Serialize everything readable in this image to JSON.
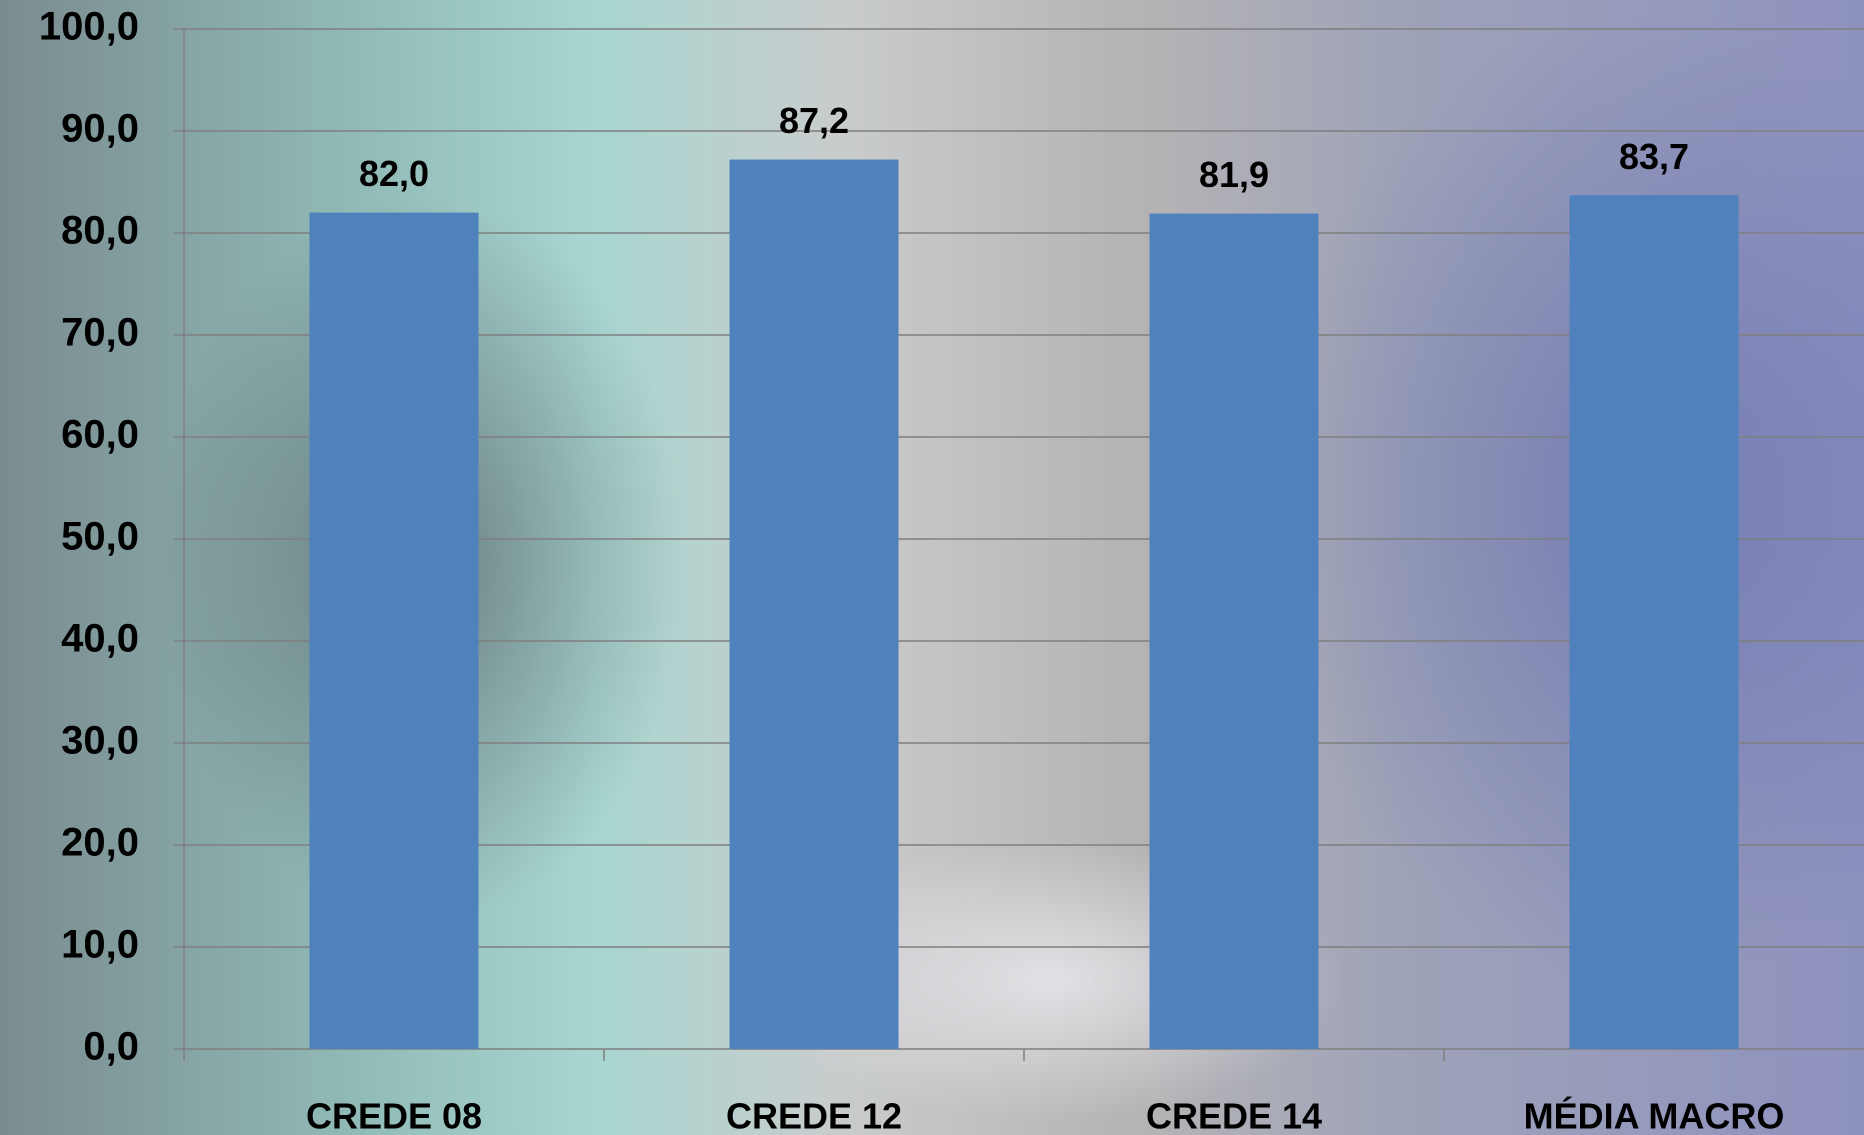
{
  "chart_data": {
    "type": "bar",
    "categories": [
      "CREDE 08",
      "CREDE 12",
      "CREDE 14",
      "MÉDIA MACRO"
    ],
    "values": [
      82.0,
      87.2,
      81.9,
      83.7
    ],
    "value_labels": [
      "82,0",
      "87,2",
      "81,9",
      "83,7"
    ],
    "color": "#4f81bd",
    "ylim": [
      0,
      100
    ],
    "yticks": [
      {
        "value": 0,
        "label": "0,0"
      },
      {
        "value": 10,
        "label": "10,0"
      },
      {
        "value": 20,
        "label": "20,0"
      },
      {
        "value": 30,
        "label": "30,0"
      },
      {
        "value": 40,
        "label": "40,0"
      },
      {
        "value": 50,
        "label": "50,0"
      },
      {
        "value": 60,
        "label": "60,0"
      },
      {
        "value": 70,
        "label": "70,0"
      },
      {
        "value": 80,
        "label": "80,0"
      },
      {
        "value": 90,
        "label": "90,0"
      },
      {
        "value": 100,
        "label": "100,0"
      }
    ],
    "grid": true
  }
}
